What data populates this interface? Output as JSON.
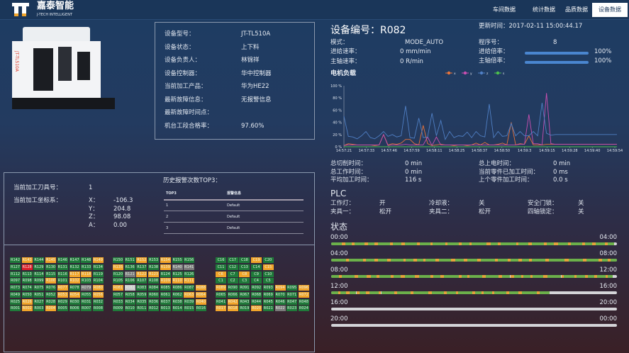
{
  "header": {
    "brand_cn": "嘉泰智能",
    "brand_en": "J-TECH INTELLIGENT",
    "nav": [
      {
        "label": "车间数据",
        "active": false
      },
      {
        "label": "统计数据",
        "active": false
      },
      {
        "label": "品质数据",
        "active": false
      },
      {
        "label": "设备数据",
        "active": true
      }
    ]
  },
  "device_info": [
    {
      "label": "设备型号：",
      "value": "JT-TL510A"
    },
    {
      "label": "设备状态：",
      "value": "上下料"
    },
    {
      "label": "设备负责人：",
      "value": "林锦祥"
    },
    {
      "label": "设备控制器：",
      "value": "华中控制器"
    },
    {
      "label": "当前加工产品：",
      "value": "华为HE22"
    },
    {
      "label": "最新故障信息：",
      "value": "无报警信息"
    },
    {
      "label": "最新故障时间点：",
      "value": ""
    },
    {
      "label": "机台工段合格率：",
      "value": "97.60%"
    }
  ],
  "machine_image_label": "JT-TL510A",
  "detail": {
    "title": "设备编号：R082",
    "update_time": "更新时间：2017-02-11 15:00:44.17",
    "mode_label": "模式：",
    "mode": "MODE_AUTO",
    "feed_label": "进给速率：",
    "feed": "0 mm/min",
    "spindle_label": "主轴速率：",
    "spindle": "0 R/min",
    "program_label": "程序号：",
    "program": "8",
    "feed_rate_label": "进给倍率：",
    "feed_rate": "100%",
    "feed_rate_pct": 100,
    "spindle_rate_label": "主轴倍率：",
    "spindle_rate": "100%",
    "spindle_rate_pct": 100
  },
  "chart_data": {
    "type": "line",
    "title": "电机负载",
    "ylim": [
      0,
      100
    ],
    "y_ticks": [
      "0 %",
      "20 %",
      "40 %",
      "60 %",
      "80 %",
      "100 %"
    ],
    "x_ticks": [
      "14:57:21",
      "14:57:33",
      "14:57:46",
      "14:57:59",
      "14:58:11",
      "14:58:25",
      "14:58:37",
      "14:58:50",
      "14:59:3",
      "14:59:15",
      "14:59:28",
      "14:59:40",
      "14:59:54"
    ],
    "x_range": [
      "14:57:21",
      "14:59:56"
    ],
    "legend_position": "top",
    "series": [
      {
        "name": "x",
        "color": "#e8743b",
        "values": [
          2,
          5,
          4,
          3,
          3,
          3,
          3,
          2,
          3,
          20,
          3,
          5,
          4,
          6,
          12,
          12,
          5,
          3,
          35,
          5,
          2,
          3,
          4,
          3,
          3,
          2,
          3,
          3,
          2,
          3,
          6,
          3,
          7,
          3,
          3,
          4,
          6,
          3,
          40,
          3,
          5,
          4,
          18,
          3,
          3,
          3,
          4,
          4,
          4,
          4,
          4,
          4,
          4,
          4,
          4,
          4,
          4,
          4,
          4,
          4,
          4,
          4,
          4
        ]
      },
      {
        "name": "y",
        "color": "#c84fb0",
        "values": [
          2,
          3,
          3,
          3,
          3,
          3,
          3,
          3,
          3,
          20,
          2,
          3,
          3,
          3,
          4,
          3,
          3,
          3,
          3,
          16,
          2,
          16,
          3,
          3,
          3,
          3,
          3,
          3,
          3,
          3,
          3,
          3,
          3,
          3,
          3,
          3,
          3,
          3,
          3,
          3,
          4,
          4,
          53,
          5,
          5,
          3,
          88,
          5,
          4,
          4,
          4,
          4,
          4,
          4,
          4,
          4,
          4,
          4,
          4,
          4,
          4,
          4,
          4
        ]
      },
      {
        "name": "z",
        "color": "#4f7fc4",
        "values": [
          50,
          17,
          16,
          13,
          18,
          25,
          15,
          13,
          18,
          25,
          17,
          20,
          16,
          18,
          67,
          15,
          14,
          47,
          15,
          16,
          55,
          18,
          43,
          12,
          25,
          15,
          18,
          17,
          24,
          15,
          25,
          18,
          16,
          70,
          15,
          25,
          17,
          18,
          38,
          18,
          25,
          18,
          18,
          25,
          18,
          72,
          22,
          19,
          20,
          20,
          20,
          20,
          20,
          20,
          20,
          20,
          20,
          20,
          20,
          20,
          20,
          20,
          20
        ]
      },
      {
        "name": "s",
        "color": "#4cc04c",
        "values": [
          0,
          0,
          0,
          0,
          0,
          0,
          0,
          0,
          0,
          0,
          0,
          0,
          0,
          0,
          0,
          0,
          0,
          0,
          0,
          0,
          0,
          0,
          0,
          0,
          0,
          0,
          0,
          0,
          0,
          0,
          0,
          0,
          0,
          0,
          0,
          0,
          0,
          0,
          0,
          0,
          0,
          0,
          0,
          0,
          0,
          0,
          0,
          0,
          0,
          0,
          0,
          0,
          0,
          0,
          0,
          0,
          0,
          0,
          0,
          0,
          0,
          0,
          0
        ]
      }
    ]
  },
  "times": [
    {
      "label": "总切削时间：",
      "value": "0 min"
    },
    {
      "label": "总工作时间：",
      "value": "0 min"
    },
    {
      "label": "平均加工时间：",
      "value": "116 s"
    },
    {
      "label": "总上电时间：",
      "value": "0 min"
    },
    {
      "label": "当前零件已加工时间：",
      "value": "0 ms"
    },
    {
      "label": "上个零件加工时间：",
      "value": "0.0 s"
    }
  ],
  "plc": {
    "title": "PLC",
    "items": [
      {
        "label": "工作灯：",
        "value": "开"
      },
      {
        "label": "冷却液：",
        "value": "关"
      },
      {
        "label": "安全门锁：",
        "value": "关"
      },
      {
        "label": "夹具一：",
        "value": "松开"
      },
      {
        "label": "夹具二：",
        "value": "松开"
      },
      {
        "label": "四轴锁定：",
        "value": "关"
      }
    ]
  },
  "status": {
    "title": "状态",
    "colors": {
      "run": "#6bb04a",
      "idle": "#e3a23a",
      "none": "#d4d4d8"
    },
    "rows": [
      {
        "start": "00:00",
        "end": "04:00",
        "filled": 0.99
      },
      {
        "start": "04:00",
        "end": "08:00",
        "filled": 1.0
      },
      {
        "start": "08:00",
        "end": "12:00",
        "filled": 0.985
      },
      {
        "start": "12:00",
        "end": "16:00",
        "filled": 0.765
      },
      {
        "start": "16:00",
        "end": "20:00",
        "filled": 0
      },
      {
        "start": "20:00",
        "end": "00:00",
        "filled": 0
      }
    ]
  },
  "tool": {
    "tool_label": "当前加工刀具号：",
    "tool": "1",
    "coord_label": "当前加工坐标系：",
    "coords": [
      {
        "axis": "X：",
        "value": "-106.3"
      },
      {
        "axis": "Y：",
        "value": "204.8"
      },
      {
        "axis": "Z：",
        "value": "98.08"
      },
      {
        "axis": "A：",
        "value": "0.00"
      }
    ]
  },
  "alarms": {
    "title": "历史报警次数TOP3：",
    "headers": [
      "TOP3",
      "报警信息"
    ],
    "rows": [
      {
        "rank": "1",
        "info": "Default"
      },
      {
        "rank": "2",
        "info": "Default"
      },
      {
        "rank": "3",
        "info": "Default"
      }
    ]
  },
  "grid_colors": {
    "g": "#1f7a3a",
    "o": "#f2a52a",
    "r": "#e0202a",
    "x": "#7a7a7a",
    "w": "#c9c9c9"
  },
  "machine_grid": [
    [
      [
        "R142",
        "g"
      ],
      [
        "R143",
        "o"
      ],
      [
        "R144",
        "g"
      ],
      [
        "R145",
        "o"
      ],
      [
        "R146",
        "g"
      ],
      [
        "R147",
        "g"
      ],
      [
        "R148",
        "g"
      ],
      [
        "R149",
        "o"
      ]
    ],
    [
      [
        "R127",
        "g"
      ],
      [
        "R128",
        "r"
      ],
      [
        "R129",
        "g"
      ],
      [
        "R130",
        "g"
      ],
      [
        "R131",
        "g"
      ],
      [
        "R132",
        "g"
      ],
      [
        "R133",
        "g"
      ],
      [
        "R134",
        "g"
      ]
    ],
    [
      [
        "R112",
        "g"
      ],
      [
        "R113",
        "g"
      ],
      [
        "R114",
        "g"
      ],
      [
        "R115",
        "g"
      ],
      [
        "R116",
        "g"
      ],
      [
        "R117",
        "o"
      ],
      [
        "R118",
        "o"
      ],
      [
        "R119",
        "g"
      ]
    ],
    [
      [
        "R097",
        "g"
      ],
      [
        "R098",
        "g"
      ],
      [
        "R099",
        "g"
      ],
      [
        "R100",
        "o"
      ],
      [
        "R101",
        "g"
      ],
      [
        "R102",
        "o"
      ],
      [
        "R103",
        "g"
      ],
      [
        "R104",
        "g"
      ]
    ],
    [
      [
        "R073",
        "g"
      ],
      [
        "R074",
        "g"
      ],
      [
        "R075",
        "g"
      ],
      [
        "R076",
        "g"
      ],
      [
        "R077",
        "o"
      ],
      [
        "R078",
        "g"
      ],
      [
        "R079",
        "x"
      ],
      [
        "R080",
        "o"
      ]
    ],
    [
      [
        "R049",
        "g"
      ],
      [
        "R050",
        "g"
      ],
      [
        "R051",
        "g"
      ],
      [
        "R052",
        "g"
      ],
      [
        "R053",
        "o"
      ],
      [
        "R054",
        "o"
      ],
      [
        "R055",
        "g"
      ],
      [
        "R056",
        "o"
      ]
    ],
    [
      [
        "R025",
        "g"
      ],
      [
        "R026",
        "o"
      ],
      [
        "R027",
        "g"
      ],
      [
        "R028",
        "g"
      ],
      [
        "R029",
        "g"
      ],
      [
        "R030",
        "g"
      ],
      [
        "R031",
        "g"
      ],
      [
        "R032",
        "g"
      ]
    ],
    [
      [
        "R001",
        "g"
      ],
      [
        "R002",
        "o"
      ],
      [
        "R003",
        "g"
      ],
      [
        "R004",
        "o"
      ],
      [
        "R005",
        "g"
      ],
      [
        "R006",
        "g"
      ],
      [
        "R007",
        "g"
      ],
      [
        "R008",
        "g"
      ]
    ]
  ],
  "machine_grid_2": [
    [
      [
        "R150",
        "g"
      ],
      [
        "R151",
        "g"
      ],
      [
        "R152",
        "o"
      ],
      [
        "R153",
        "g"
      ],
      [
        "R154",
        "o"
      ],
      [
        "R155",
        "g"
      ],
      [
        "R156",
        "g"
      ]
    ],
    [
      [
        "R135",
        "o"
      ],
      [
        "R136",
        "g"
      ],
      [
        "R137",
        "g"
      ],
      [
        "R138",
        "g"
      ],
      [
        "R139",
        "o"
      ],
      [
        "R140",
        "x"
      ],
      [
        "R141",
        "x"
      ]
    ],
    [
      [
        "R120",
        "g"
      ],
      [
        "R121",
        "x"
      ],
      [
        "R122",
        "o"
      ],
      [
        "R123",
        "o"
      ],
      [
        "R124",
        "g"
      ],
      [
        "R125",
        "g"
      ],
      [
        "R126",
        "g"
      ]
    ],
    [
      [
        "R105",
        "g"
      ],
      [
        "R106",
        "g"
      ],
      [
        "R107",
        "g"
      ],
      [
        "R108",
        "g"
      ],
      [
        "R109",
        "o"
      ],
      [
        "R110",
        "o"
      ],
      [
        "R111",
        "o"
      ]
    ],
    [
      [
        "R081",
        "o"
      ],
      [
        "R082",
        "w"
      ],
      [
        "R083",
        "g"
      ],
      [
        "R084",
        "g"
      ],
      [
        "R085",
        "g"
      ],
      [
        "R086",
        "g"
      ],
      [
        "R087",
        "g"
      ],
      [
        "R088",
        "o"
      ]
    ],
    [
      [
        "R057",
        "g"
      ],
      [
        "R058",
        "g"
      ],
      [
        "R059",
        "g"
      ],
      [
        "R060",
        "g"
      ],
      [
        "R061",
        "g"
      ],
      [
        "R062",
        "g"
      ],
      [
        "R063",
        "o"
      ],
      [
        "R064",
        "o"
      ]
    ],
    [
      [
        "R033",
        "g"
      ],
      [
        "R034",
        "g"
      ],
      [
        "R035",
        "g"
      ],
      [
        "R036",
        "g"
      ],
      [
        "R037",
        "g"
      ],
      [
        "R038",
        "g"
      ],
      [
        "R039",
        "g"
      ],
      [
        "R040",
        "o"
      ]
    ],
    [
      [
        "R009",
        "g"
      ],
      [
        "R010",
        "g"
      ],
      [
        "R011",
        "g"
      ],
      [
        "R012",
        "g"
      ],
      [
        "R013",
        "g"
      ],
      [
        "R014",
        "g"
      ],
      [
        "R015",
        "g"
      ],
      [
        "R016",
        "g"
      ]
    ]
  ],
  "machine_grid_3": [
    [
      [
        "C16",
        "g"
      ],
      [
        "C17",
        "g"
      ],
      [
        "C18",
        "g"
      ],
      [
        "C19",
        "o"
      ],
      [
        "C20",
        "g"
      ]
    ],
    [
      [
        "C11",
        "g"
      ],
      [
        "C12",
        "g"
      ],
      [
        "C13",
        "g"
      ],
      [
        "C14",
        "g"
      ],
      [
        "C15",
        "o"
      ]
    ],
    [
      [
        "C6",
        "o"
      ],
      [
        "C7",
        "g"
      ],
      [
        "C8",
        "o"
      ],
      [
        "C9",
        "g"
      ],
      [
        "C10",
        "g"
      ]
    ],
    [
      [
        "C1",
        "g"
      ],
      [
        "C2",
        "g"
      ],
      [
        "C3",
        "g"
      ],
      [
        "C4",
        "g"
      ],
      [
        "C5",
        "g"
      ]
    ],
    [
      [
        "R089",
        "o"
      ],
      [
        "R090",
        "g"
      ],
      [
        "R091",
        "g"
      ],
      [
        "R092",
        "g"
      ],
      [
        "R093",
        "g"
      ],
      [
        "R094",
        "o"
      ],
      [
        "R095",
        "g"
      ],
      [
        "R096",
        "o"
      ]
    ],
    [
      [
        "R065",
        "g"
      ],
      [
        "R066",
        "g"
      ],
      [
        "R067",
        "g"
      ],
      [
        "R068",
        "g"
      ],
      [
        "R069",
        "g"
      ],
      [
        "R070",
        "g"
      ],
      [
        "R071",
        "g"
      ],
      [
        "R072",
        "o"
      ]
    ],
    [
      [
        "R041",
        "g"
      ],
      [
        "R042",
        "o"
      ],
      [
        "R043",
        "g"
      ],
      [
        "R044",
        "g"
      ],
      [
        "R045",
        "g"
      ],
      [
        "R046",
        "g"
      ],
      [
        "R047",
        "g"
      ],
      [
        "R048",
        "g"
      ]
    ],
    [
      [
        "R017",
        "o"
      ],
      [
        "R018",
        "o"
      ],
      [
        "R019",
        "g"
      ],
      [
        "R020",
        "o"
      ],
      [
        "R021",
        "g"
      ],
      [
        "R022",
        "x"
      ],
      [
        "R023",
        "g"
      ],
      [
        "R024",
        "g"
      ]
    ]
  ]
}
